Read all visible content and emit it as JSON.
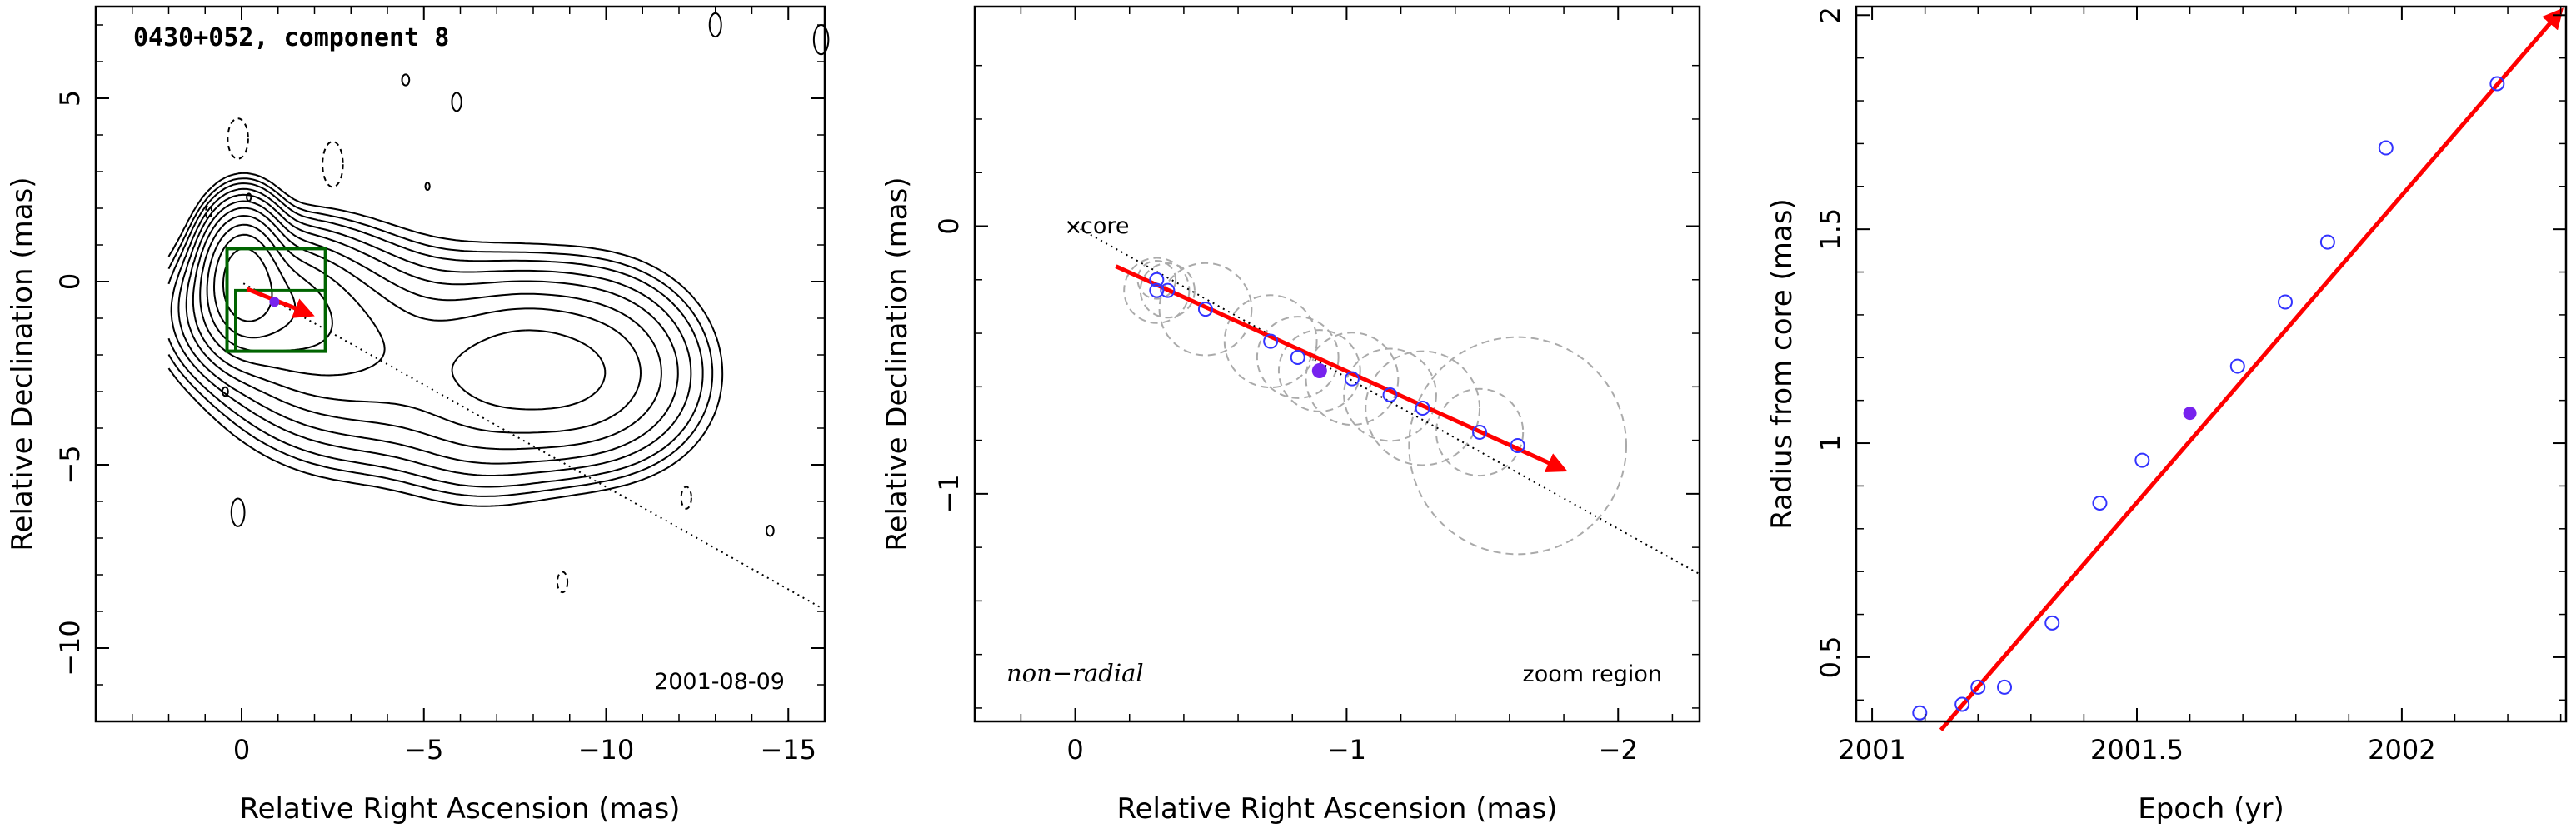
{
  "colors": {
    "arrow": "#ff0000",
    "circle_points": "#3333ff",
    "filled_point": "#7722ee",
    "zoom_box": "#006400",
    "component_circles": "#aaaaaa"
  },
  "chart_data": [
    {
      "type": "contour",
      "title": "0430+052, component 8",
      "xlabel": "Relative Right Ascension (mas)",
      "ylabel": "Relative Declination (mas)",
      "xlim": [
        4,
        -16
      ],
      "ylim": [
        -12,
        7.5
      ],
      "xticks": [
        0,
        -5,
        -10,
        -15
      ],
      "yticks": [
        5,
        0,
        -5,
        -10
      ],
      "epoch_label": "2001-08-09",
      "zoom_region": {
        "x": [
          -2.3,
          0.4
        ],
        "y": [
          -1.9,
          0.9
        ]
      },
      "arrow": {
        "from": [
          -0.15,
          -0.2
        ],
        "to": [
          -1.9,
          -0.9
        ]
      },
      "jet_axis": {
        "from": [
          -0.05,
          -0.05
        ],
        "to": [
          -15.9,
          -8.9
        ]
      },
      "feature_point": [
        -0.9,
        -0.55
      ]
    },
    {
      "type": "scatter",
      "xlabel": "Relative Right Ascension (mas)",
      "ylabel": "Relative Declination (mas)",
      "xlim": [
        0.37,
        -2.3
      ],
      "ylim": [
        -1.85,
        0.82
      ],
      "xticks": [
        0,
        -1,
        -2
      ],
      "yticks": [
        0,
        -1
      ],
      "core_label": "core",
      "motion_label": "non−radial",
      "zoom_label": "zoom region",
      "jet_axis": {
        "from": [
          0.0,
          0.0
        ],
        "to": [
          -2.3,
          -1.3
        ]
      },
      "arrow": {
        "from": [
          -0.15,
          -0.15
        ],
        "to": [
          -1.8,
          -0.91
        ]
      },
      "points": [
        {
          "x": -0.3,
          "y": -0.2,
          "r": 0.07
        },
        {
          "x": -0.3,
          "y": -0.24,
          "r": 0.12
        },
        {
          "x": -0.34,
          "y": -0.24,
          "r": 0.1
        },
        {
          "x": -0.48,
          "y": -0.31,
          "r": 0.17
        },
        {
          "x": -0.72,
          "y": -0.43,
          "r": 0.17
        },
        {
          "x": -0.82,
          "y": -0.49,
          "r": 0.15
        },
        {
          "x": -1.02,
          "y": -0.57,
          "r": 0.17
        },
        {
          "x": -1.16,
          "y": -0.63,
          "r": 0.17
        },
        {
          "x": -1.28,
          "y": -0.68,
          "r": 0.21
        },
        {
          "x": -1.49,
          "y": -0.77,
          "r": 0.16
        },
        {
          "x": -1.63,
          "y": -0.82,
          "r": 0.4
        }
      ],
      "highlight": {
        "x": -0.9,
        "y": -0.54,
        "r": 0.15
      }
    },
    {
      "type": "scatter",
      "xlabel": "Epoch (yr)",
      "ylabel": "Radius from core (mas)",
      "xlim": [
        2000.97,
        2002.31
      ],
      "ylim": [
        0.35,
        2.02
      ],
      "xticks": [
        2001,
        2001.5,
        2002
      ],
      "xtick_labels": [
        "2001",
        "2001.5",
        "2002"
      ],
      "yticks": [
        0.5,
        1,
        1.5,
        2
      ],
      "ytick_labels": [
        "0.5",
        "1",
        "1.5",
        "2"
      ],
      "points": [
        {
          "x": 2001.09,
          "y": 0.37
        },
        {
          "x": 2001.17,
          "y": 0.39
        },
        {
          "x": 2001.2,
          "y": 0.43
        },
        {
          "x": 2001.25,
          "y": 0.43
        },
        {
          "x": 2001.34,
          "y": 0.58
        },
        {
          "x": 2001.43,
          "y": 0.86
        },
        {
          "x": 2001.51,
          "y": 0.96
        },
        {
          "x": 2001.69,
          "y": 1.18
        },
        {
          "x": 2001.78,
          "y": 1.33
        },
        {
          "x": 2001.86,
          "y": 1.47
        },
        {
          "x": 2001.97,
          "y": 1.69
        },
        {
          "x": 2002.18,
          "y": 1.84
        }
      ],
      "highlight": {
        "x": 2001.6,
        "y": 1.07
      },
      "fit_line": {
        "from": [
          2001.13,
          0.33
        ],
        "to": [
          2002.3,
          2.01
        ]
      }
    }
  ]
}
